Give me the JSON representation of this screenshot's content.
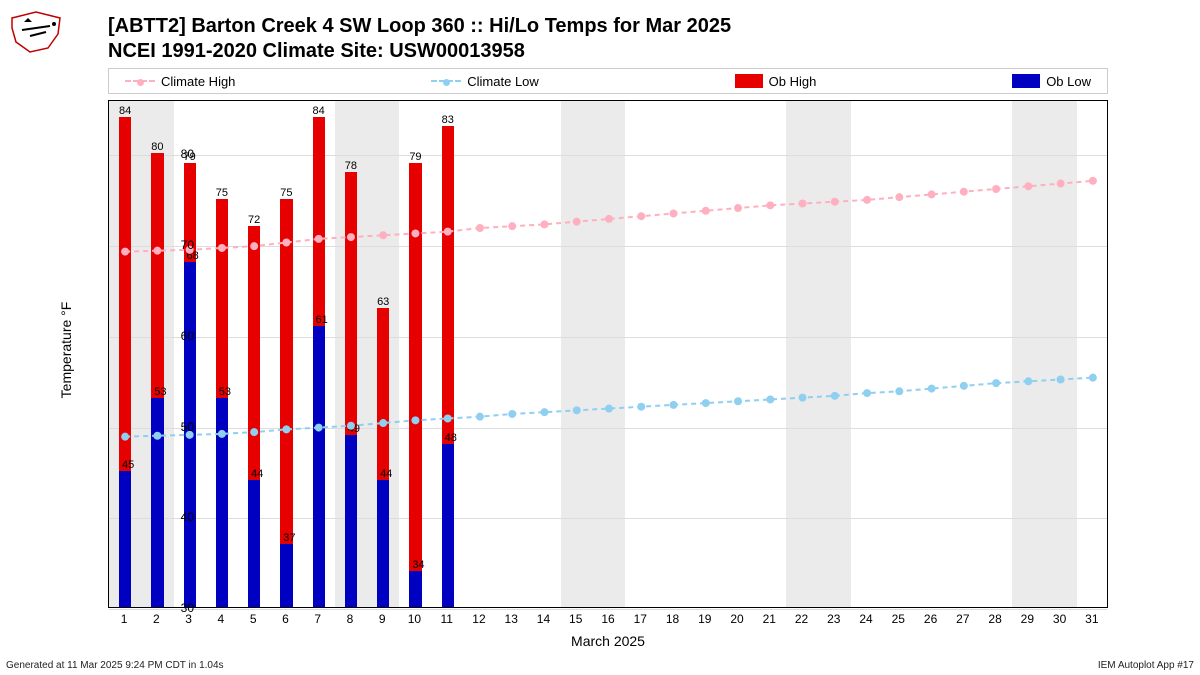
{
  "title_line1": "[ABTT2] Barton Creek 4 SW Loop 360 :: Hi/Lo Temps for Mar 2025",
  "title_line2": "NCEI 1991-2020 Climate Site: USW00013958",
  "ylabel": "Temperature °F",
  "xlabel": "March 2025",
  "footer_left": "Generated at 11 Mar 2025 9:24 PM CDT in 1.04s",
  "footer_right": "IEM Autoplot App #17",
  "legend": {
    "climate_high": "Climate High",
    "climate_low": "Climate Low",
    "ob_high": "Ob High",
    "ob_low": "Ob Low"
  },
  "chart": {
    "type": "bar+line",
    "background_color": "#ffffff",
    "weekend_band_color": "#ebebeb",
    "grid_color": "#dddddd",
    "border_color": "#000000",
    "ylim": [
      30,
      86
    ],
    "yticks": [
      30,
      40,
      50,
      60,
      70,
      80
    ],
    "days": [
      1,
      2,
      3,
      4,
      5,
      6,
      7,
      8,
      9,
      10,
      11,
      12,
      13,
      14,
      15,
      16,
      17,
      18,
      19,
      20,
      21,
      22,
      23,
      24,
      25,
      26,
      27,
      28,
      29,
      30,
      31
    ],
    "weekend_days": [
      1,
      2,
      8,
      9,
      15,
      16,
      22,
      23,
      29,
      30
    ],
    "ob_high": {
      "color": "#e60000",
      "values": {
        "1": 84,
        "2": 80,
        "3": 79,
        "4": 75,
        "5": 72,
        "6": 75,
        "7": 84,
        "8": 78,
        "9": 63,
        "10": 79,
        "11": 83
      }
    },
    "ob_low": {
      "color": "#0000c0",
      "values": {
        "1": 45,
        "2": 53,
        "3": 68,
        "4": 53,
        "5": 44,
        "6": 37,
        "7": 61,
        "8": 49,
        "9": 44,
        "10": 34,
        "11": 48
      }
    },
    "climate_high": {
      "color": "#ffb0c0",
      "dash": "5,4",
      "marker_size": 4,
      "values": [
        69.4,
        69.5,
        69.6,
        69.8,
        70.0,
        70.4,
        70.8,
        71.0,
        71.2,
        71.4,
        71.6,
        72.0,
        72.2,
        72.4,
        72.7,
        73.0,
        73.3,
        73.6,
        73.9,
        74.2,
        74.5,
        74.7,
        74.9,
        75.1,
        75.4,
        75.7,
        76.0,
        76.3,
        76.6,
        76.9,
        77.2
      ]
    },
    "climate_low": {
      "color": "#8fcff0",
      "dash": "5,4",
      "marker_size": 4,
      "values": [
        49.0,
        49.1,
        49.2,
        49.3,
        49.5,
        49.8,
        50.0,
        50.2,
        50.5,
        50.8,
        51.0,
        51.2,
        51.5,
        51.7,
        51.9,
        52.1,
        52.3,
        52.5,
        52.7,
        52.9,
        53.1,
        53.3,
        53.5,
        53.8,
        54.0,
        54.3,
        54.6,
        54.9,
        55.1,
        55.3,
        55.5
      ]
    },
    "bar_width_ratio": 0.38,
    "label_fontsize": 11,
    "axis_fontsize": 12
  }
}
